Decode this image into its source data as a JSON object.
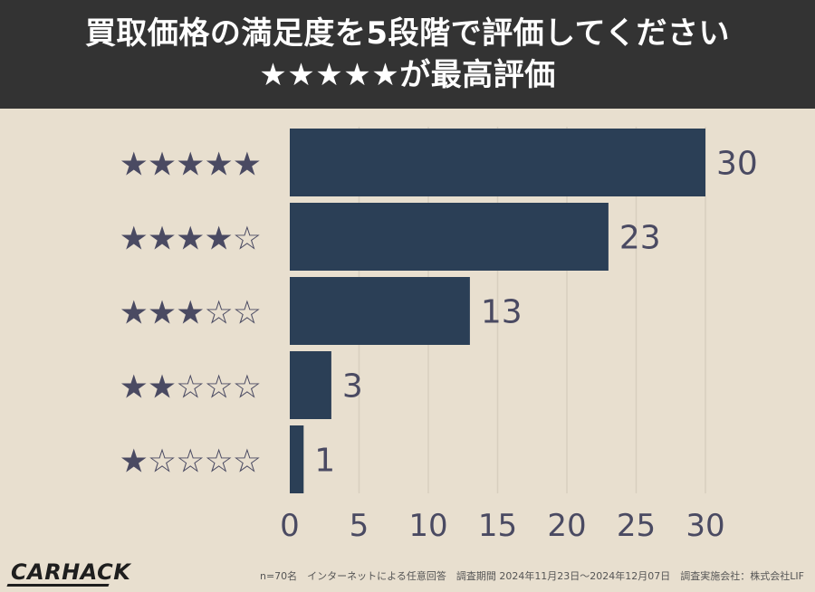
{
  "header": {
    "title_line1": "買取価格の満足度を5段階で評価してください",
    "title_line2": "★★★★★が最高評価"
  },
  "chart_data": {
    "type": "bar",
    "orientation": "horizontal",
    "categories": [
      "★★★★★",
      "★★★★☆",
      "★★★☆☆",
      "★★☆☆☆",
      "★☆☆☆☆"
    ],
    "values": [
      30,
      23,
      13,
      3,
      1
    ],
    "xlim": [
      0,
      30
    ],
    "x_ticks": [
      0,
      5,
      10,
      15,
      20,
      25,
      30
    ],
    "grid": true,
    "data_labels": true
  },
  "footer": {
    "logo": "CARHACK",
    "note": "n=70名　インターネットによる任意回答　調査期間 2024年11月23日〜2024年12月07日　調査実施会社：株式会社LIF"
  },
  "colors": {
    "background": "#e8dfcf",
    "header_bg": "#333333",
    "bar": "#2b3f56",
    "text": "#4a4a62",
    "grid": "#d8cfbf"
  }
}
